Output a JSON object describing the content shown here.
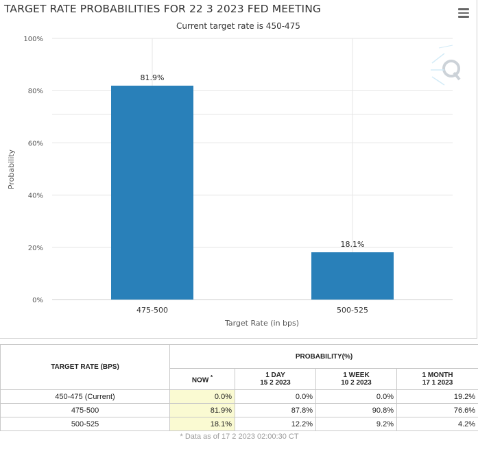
{
  "page": {
    "title": "TARGET RATE PROBABILITIES FOR 22 3 2023 FED MEETING",
    "subtitle": "Current target rate is 450-475"
  },
  "chart_data": {
    "type": "bar",
    "title": "TARGET RATE PROBABILITIES FOR 22 3 2023 FED MEETING",
    "subtitle": "Current target rate is 450-475",
    "categories": [
      "475-500",
      "500-525"
    ],
    "values": [
      81.9,
      18.1
    ],
    "data_labels": [
      "81.9%",
      "18.1%"
    ],
    "xlabel": "Target Rate (in bps)",
    "ylabel": "Probability",
    "ylim": [
      0,
      100
    ],
    "yticks": [
      0,
      20,
      40,
      60,
      80,
      100
    ],
    "ytick_labels": [
      "0%",
      "20%",
      "40%",
      "60%",
      "80%",
      "100%"
    ],
    "bar_color": "#2980b9",
    "grid": true,
    "legend": "none"
  },
  "table": {
    "header_rate": "TARGET RATE (BPS)",
    "header_prob": "PROBABILITY(%)",
    "col_now": "NOW",
    "col_now_mark": "*",
    "col_1day": "1 DAY",
    "col_1day_date": "15 2 2023",
    "col_1week": "1 WEEK",
    "col_1week_date": "10 2 2023",
    "col_1month": "1 MONTH",
    "col_1month_date": "17 1 2023",
    "rows": [
      {
        "rate": "450-475 (Current)",
        "now": "0.0%",
        "day": "0.0%",
        "week": "0.0%",
        "month": "19.2%"
      },
      {
        "rate": "475-500",
        "now": "81.9%",
        "day": "87.8%",
        "week": "90.8%",
        "month": "76.6%"
      },
      {
        "rate": "500-525",
        "now": "18.1%",
        "day": "12.2%",
        "week": "9.2%",
        "month": "4.2%"
      }
    ],
    "footnote": "* Data as of 17 2 2023 02:00:30 CT"
  }
}
